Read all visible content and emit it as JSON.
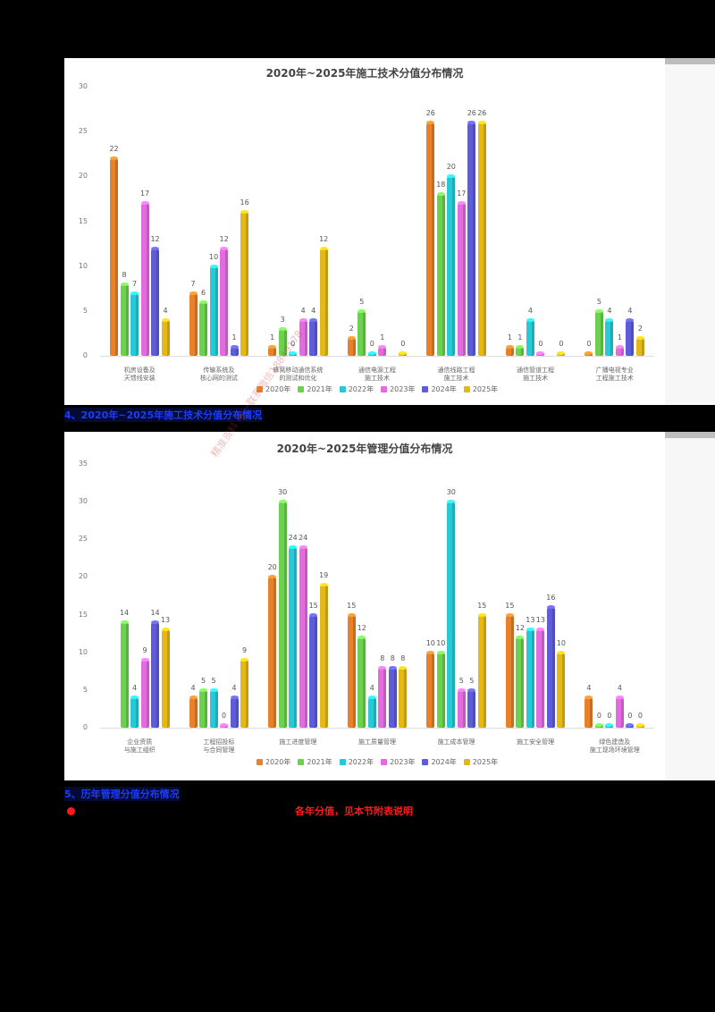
{
  "captions": {
    "caption4": "4、2020年~2025年施工技术分值分布情况",
    "caption5": "5、历年管理分值分布情况",
    "red_note": "各年分值，见本节附表说明"
  },
  "watermark": "精准资料 唯一联系微信18849178",
  "legend": [
    {
      "label": "2020年",
      "color": "#e8822a"
    },
    {
      "label": "2021年",
      "color": "#6cd14e"
    },
    {
      "label": "2022年",
      "color": "#27c9d6"
    },
    {
      "label": "2023年",
      "color": "#e36be0"
    },
    {
      "label": "2024年",
      "color": "#5e5cd8"
    },
    {
      "label": "2025年",
      "color": "#e4b818"
    }
  ],
  "chart_data": [
    {
      "type": "bar",
      "title": "2020年~2025年施工技术分值分布情况",
      "xlabel": "",
      "ylabel": "",
      "ylim": [
        0,
        30
      ],
      "yticks": [
        0,
        5,
        10,
        15,
        20,
        25,
        30
      ],
      "grid": false,
      "legend_position": "bottom",
      "categories": [
        "机房设备及\n天馈线安装",
        "传输系统及\n核心网的测试",
        "蜂窝移动通信系统\n的测试和优化",
        "通信电源工程\n施工技术",
        "通信线路工程\n施工技术",
        "通信管道工程\n施工技术",
        "广播电视专业\n工程施工技术"
      ],
      "series": [
        {
          "name": "2020年",
          "values": [
            22,
            7,
            1,
            2,
            26,
            1,
            0
          ]
        },
        {
          "name": "2021年",
          "values": [
            8,
            6,
            3,
            5,
            18,
            1,
            5
          ]
        },
        {
          "name": "2022年",
          "values": [
            7,
            10,
            0,
            0,
            20,
            4,
            4
          ]
        },
        {
          "name": "2023年",
          "values": [
            17,
            12,
            4,
            1,
            17,
            0,
            1
          ]
        },
        {
          "name": "2024年",
          "values": [
            12,
            1,
            4,
            null,
            26,
            null,
            4
          ]
        },
        {
          "name": "2025年",
          "values": [
            4,
            16,
            12,
            0,
            26,
            0,
            2
          ]
        }
      ]
    },
    {
      "type": "bar",
      "title": "2020年~2025年管理分值分布情况",
      "xlabel": "",
      "ylabel": "",
      "ylim": [
        0,
        35
      ],
      "yticks": [
        0,
        5,
        10,
        15,
        20,
        25,
        30,
        35
      ],
      "grid": false,
      "legend_position": "bottom",
      "categories": [
        "企业资质\n与施工组织",
        "工程招投标\n与合同管理",
        "施工进度管理",
        "施工质量管理",
        "施工成本管理",
        "施工安全管理",
        "绿色建造及\n施工现场环境管理"
      ],
      "series": [
        {
          "name": "2020年",
          "values": [
            null,
            4,
            20,
            15,
            10,
            15,
            4
          ]
        },
        {
          "name": "2021年",
          "values": [
            14,
            5,
            30,
            12,
            10,
            12,
            0
          ]
        },
        {
          "name": "2022年",
          "values": [
            4,
            5,
            24,
            4,
            30,
            13,
            0
          ]
        },
        {
          "name": "2023年",
          "values": [
            9,
            0,
            24,
            8,
            5,
            13,
            4
          ]
        },
        {
          "name": "2024年",
          "values": [
            14,
            4,
            15,
            8,
            5,
            16,
            0
          ]
        },
        {
          "name": "2025年",
          "values": [
            13,
            9,
            19,
            8,
            15,
            10,
            0
          ]
        }
      ]
    }
  ]
}
